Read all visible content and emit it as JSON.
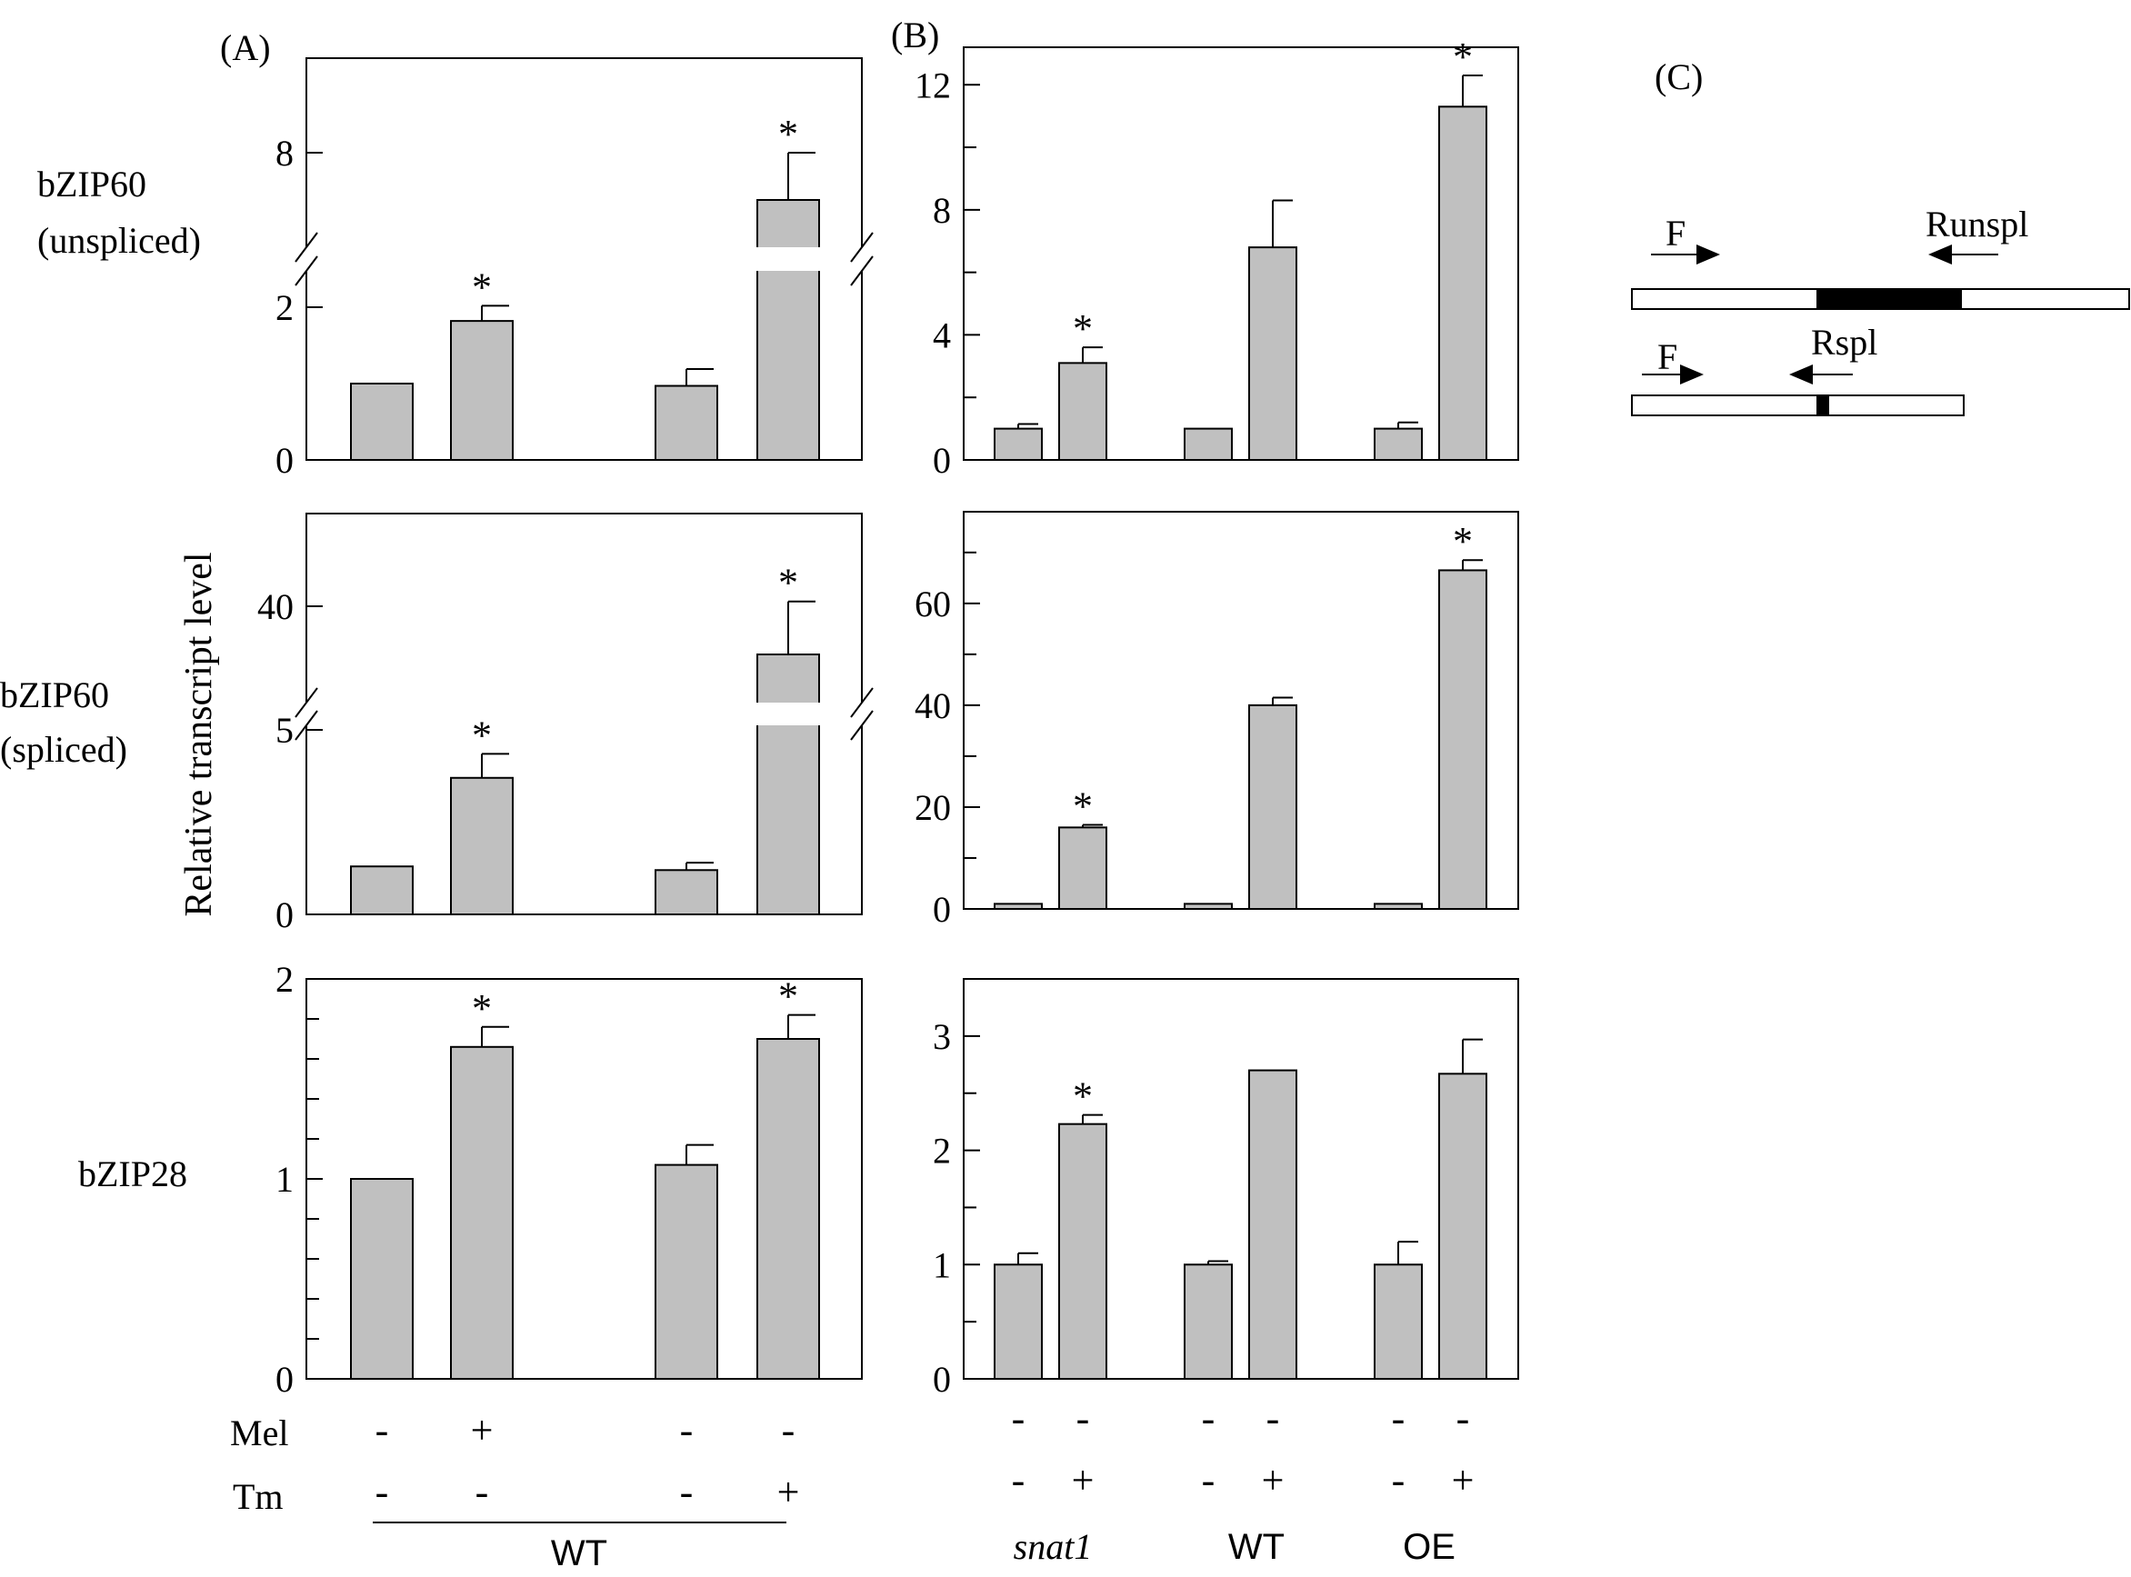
{
  "panel_labels": {
    "a": "(A)",
    "b": "(B)",
    "c": "(C)"
  },
  "row_labels": {
    "row1_l1": "bZIP60",
    "row1_l2": "(unspliced)",
    "row2_l1": "bZIP60",
    "row2_l2": "(spliced)",
    "row3": "bZIP28"
  },
  "ylabel": "Relative transcript level",
  "treatment_labels": {
    "mel": "Mel",
    "tm": "Tm",
    "wt": "WT"
  },
  "a_signs": {
    "mel": [
      "-",
      "+",
      "-",
      "-"
    ],
    "tm": [
      "-",
      "-",
      "-",
      "+"
    ]
  },
  "b_signs": {
    "row1": [
      "-",
      "-",
      "-",
      "-",
      "-",
      "-"
    ],
    "row2": [
      "-",
      "+",
      "-",
      "+",
      "-",
      "+"
    ]
  },
  "b_groups": [
    "snat1",
    "WT",
    "OE"
  ],
  "schematic": {
    "fwd": "F",
    "runspl": "Runspl",
    "rspl": "Rspl"
  },
  "colors": {
    "bar": "#c0c0c0",
    "stroke": "#000000"
  },
  "chart_data": [
    {
      "id": "A1",
      "panel": "A",
      "gene": "bZIP60 (unspliced)",
      "type": "bar",
      "broken_axis": true,
      "categories": [
        "Mel- Tm-",
        "Mel+ Tm-",
        "Mel- Tm-",
        "Mel- Tm+"
      ],
      "values": [
        1.0,
        1.82,
        0.97,
        7.0
      ],
      "errors": [
        0,
        0.2,
        0.22,
        1.0
      ],
      "significant": [
        false,
        true,
        false,
        true
      ],
      "lower_ticks": [
        0,
        2
      ],
      "upper_ticks": [
        8
      ]
    },
    {
      "id": "A2",
      "panel": "A",
      "gene": "bZIP60 (spliced)",
      "type": "bar",
      "broken_axis": true,
      "categories": [
        "Mel- Tm-",
        "Mel+ Tm-",
        "Mel- Tm-",
        "Mel- Tm+"
      ],
      "values": [
        1.3,
        3.7,
        1.2,
        35
      ],
      "errors": [
        0,
        0.65,
        0.2,
        5.5
      ],
      "significant": [
        false,
        true,
        false,
        true
      ],
      "lower_ticks": [
        0,
        5
      ],
      "upper_ticks": [
        40
      ]
    },
    {
      "id": "A3",
      "panel": "A",
      "gene": "bZIP28",
      "type": "bar",
      "ylim": [
        0,
        2
      ],
      "ticks": [
        0,
        1,
        2
      ],
      "minor": [
        0.2,
        0.4,
        0.6,
        0.8,
        1.2,
        1.4,
        1.6,
        1.8
      ],
      "categories": [
        "Mel- Tm-",
        "Mel+ Tm-",
        "Mel- Tm-",
        "Mel- Tm+"
      ],
      "values": [
        1.0,
        1.66,
        1.07,
        1.7
      ],
      "errors": [
        0,
        0.1,
        0.1,
        0.12
      ],
      "significant": [
        false,
        true,
        false,
        true
      ]
    },
    {
      "id": "B1",
      "panel": "B",
      "gene": "bZIP60 (unspliced)",
      "type": "bar",
      "ylim": [
        0,
        13.2
      ],
      "ticks": [
        0,
        4,
        8,
        12
      ],
      "minor": [
        2,
        6,
        10
      ],
      "categories": [
        "snat1 -",
        "snat1 +",
        "WT -",
        "WT +",
        "OE -",
        "OE +"
      ],
      "values": [
        1.0,
        3.1,
        1.0,
        6.8,
        1.0,
        11.3
      ],
      "errors": [
        0.15,
        0.5,
        0,
        1.5,
        0.2,
        1.0
      ],
      "significant": [
        false,
        true,
        false,
        false,
        false,
        true
      ]
    },
    {
      "id": "B2",
      "panel": "B",
      "gene": "bZIP60 (spliced)",
      "type": "bar",
      "ylim": [
        0,
        78
      ],
      "ticks": [
        0,
        20,
        40,
        60
      ],
      "minor": [
        10,
        30,
        50,
        70
      ],
      "categories": [
        "snat1 -",
        "snat1 +",
        "WT -",
        "WT +",
        "OE -",
        "OE +"
      ],
      "values": [
        1.0,
        16.0,
        1.0,
        40.0,
        1.0,
        66.5
      ],
      "errors": [
        0,
        0.5,
        0,
        1.5,
        0,
        2.0
      ],
      "significant": [
        false,
        true,
        false,
        false,
        false,
        true
      ]
    },
    {
      "id": "B3",
      "panel": "B",
      "gene": "bZIP28",
      "type": "bar",
      "ylim": [
        0,
        3.5
      ],
      "ticks": [
        0,
        1,
        2,
        3
      ],
      "minor": [
        0.5,
        1.5,
        2.5
      ],
      "categories": [
        "snat1 -",
        "snat1 +",
        "WT -",
        "WT +",
        "OE -",
        "OE +"
      ],
      "values": [
        1.0,
        2.23,
        1.0,
        2.7,
        1.0,
        2.67
      ],
      "errors": [
        0.1,
        0.08,
        0.03,
        0,
        0.2,
        0.3
      ],
      "significant": [
        false,
        true,
        false,
        false,
        false,
        false
      ]
    }
  ]
}
